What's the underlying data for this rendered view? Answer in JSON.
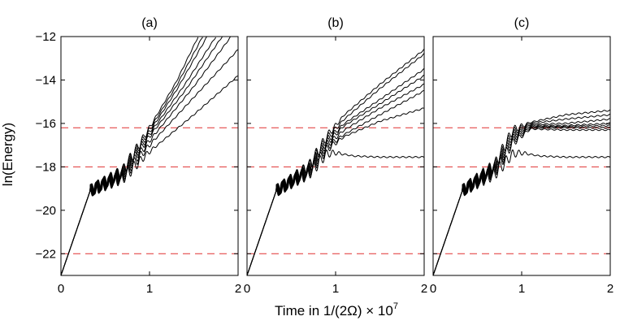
{
  "figure": {
    "ylabel": "ln(Energy)",
    "xlabel": "Time in 1/(2Ω) × 10",
    "xlabel_exponent": "7"
  },
  "chart_data": [
    {
      "type": "line",
      "title": "(a)",
      "xlim": [
        0,
        2
      ],
      "ylim": [
        -23,
        -12
      ],
      "xticks": [
        0,
        1,
        2
      ],
      "yticks": [
        -22,
        -20,
        -18,
        -16,
        -14,
        -12
      ],
      "ref_lines": [
        -16.2,
        -18.0,
        -22.0
      ],
      "ref_color": "#e03030",
      "line_color": "#000000",
      "series": [
        {
          "name": "c1",
          "points": [
            [
              0,
              -23
            ],
            [
              0.33,
              -19.1
            ],
            [
              0.7,
              -18.2
            ],
            [
              1.0,
              -16.2
            ],
            [
              1.3,
              -14.1
            ],
            [
              1.55,
              -12.0
            ]
          ]
        },
        {
          "name": "c2",
          "points": [
            [
              0,
              -23
            ],
            [
              0.33,
              -19.1
            ],
            [
              0.7,
              -18.2
            ],
            [
              1.0,
              -16.3
            ],
            [
              1.3,
              -14.3
            ],
            [
              1.6,
              -12.0
            ]
          ]
        },
        {
          "name": "c3",
          "points": [
            [
              0,
              -23
            ],
            [
              0.33,
              -19.1
            ],
            [
              0.7,
              -18.25
            ],
            [
              1.0,
              -16.4
            ],
            [
              1.3,
              -14.5
            ],
            [
              1.65,
              -12.0
            ]
          ]
        },
        {
          "name": "c4",
          "points": [
            [
              0,
              -23
            ],
            [
              0.33,
              -19.1
            ],
            [
              0.7,
              -18.3
            ],
            [
              1.0,
              -16.5
            ],
            [
              1.4,
              -14.2
            ],
            [
              1.75,
              -12.0
            ]
          ]
        },
        {
          "name": "c5",
          "points": [
            [
              0,
              -23
            ],
            [
              0.33,
              -19.1
            ],
            [
              0.7,
              -18.35
            ],
            [
              1.0,
              -16.6
            ],
            [
              1.4,
              -14.5
            ],
            [
              1.82,
              -12.0
            ]
          ]
        },
        {
          "name": "c6",
          "points": [
            [
              0,
              -23
            ],
            [
              0.33,
              -19.1
            ],
            [
              0.7,
              -18.4
            ],
            [
              1.0,
              -16.8
            ],
            [
              1.5,
              -14.3
            ],
            [
              1.92,
              -12.0
            ]
          ]
        },
        {
          "name": "c7",
          "points": [
            [
              0,
              -23
            ],
            [
              0.33,
              -19.1
            ],
            [
              0.7,
              -18.45
            ],
            [
              1.0,
              -17.0
            ],
            [
              1.5,
              -14.8
            ],
            [
              2.0,
              -12.6
            ]
          ]
        },
        {
          "name": "c8",
          "points": [
            [
              0,
              -23
            ],
            [
              0.33,
              -19.1
            ],
            [
              0.7,
              -18.5
            ],
            [
              1.0,
              -17.3
            ],
            [
              1.5,
              -15.6
            ],
            [
              2.0,
              -13.8
            ]
          ]
        }
      ]
    },
    {
      "type": "line",
      "title": "(b)",
      "xlim": [
        0,
        2
      ],
      "ylim": [
        -23,
        -12
      ],
      "xticks": [
        0,
        1,
        2
      ],
      "yticks": [
        -22,
        -20,
        -18,
        -16,
        -14,
        -12
      ],
      "ref_lines": [
        -16.2,
        -18.0,
        -22.0
      ],
      "ref_color": "#e03030",
      "line_color": "#000000",
      "series": [
        {
          "name": "c1",
          "points": [
            [
              0,
              -23
            ],
            [
              0.33,
              -19.1
            ],
            [
              0.7,
              -18.0
            ],
            [
              0.9,
              -16.6
            ],
            [
              1.1,
              -15.6
            ],
            [
              1.5,
              -14.2
            ],
            [
              2.0,
              -12.6
            ]
          ]
        },
        {
          "name": "c2",
          "points": [
            [
              0,
              -23
            ],
            [
              0.33,
              -19.1
            ],
            [
              0.7,
              -18.0
            ],
            [
              0.9,
              -16.7
            ],
            [
              1.1,
              -15.8
            ],
            [
              1.5,
              -14.4
            ],
            [
              2.0,
              -12.8
            ]
          ]
        },
        {
          "name": "c3",
          "points": [
            [
              0,
              -23
            ],
            [
              0.33,
              -19.1
            ],
            [
              0.7,
              -18.1
            ],
            [
              0.9,
              -16.8
            ],
            [
              1.1,
              -16.0
            ],
            [
              1.5,
              -14.9
            ],
            [
              2.0,
              -13.5
            ]
          ]
        },
        {
          "name": "c4",
          "points": [
            [
              0,
              -23
            ],
            [
              0.33,
              -19.1
            ],
            [
              0.7,
              -18.1
            ],
            [
              0.9,
              -16.9
            ],
            [
              1.1,
              -16.1
            ],
            [
              1.5,
              -15.1
            ],
            [
              2.0,
              -13.8
            ]
          ]
        },
        {
          "name": "c5",
          "points": [
            [
              0,
              -23
            ],
            [
              0.33,
              -19.1
            ],
            [
              0.7,
              -18.15
            ],
            [
              0.9,
              -17.0
            ],
            [
              1.1,
              -16.3
            ],
            [
              1.5,
              -15.3
            ],
            [
              2.0,
              -14.2
            ]
          ]
        },
        {
          "name": "c6",
          "points": [
            [
              0,
              -23
            ],
            [
              0.33,
              -19.1
            ],
            [
              0.7,
              -18.2
            ],
            [
              0.9,
              -17.1
            ],
            [
              1.1,
              -16.5
            ],
            [
              1.5,
              -15.6
            ],
            [
              2.0,
              -14.5
            ]
          ]
        },
        {
          "name": "c7",
          "points": [
            [
              0,
              -23
            ],
            [
              0.33,
              -19.1
            ],
            [
              0.7,
              -18.25
            ],
            [
              0.9,
              -17.2
            ],
            [
              1.1,
              -16.6
            ],
            [
              1.5,
              -15.9
            ],
            [
              2.0,
              -15.3
            ]
          ]
        },
        {
          "name": "c8",
          "points": [
            [
              0,
              -23
            ],
            [
              0.33,
              -19.1
            ],
            [
              0.7,
              -18.3
            ],
            [
              0.9,
              -17.4
            ],
            [
              1.0,
              -17.35
            ],
            [
              1.2,
              -17.5
            ],
            [
              1.5,
              -17.55
            ],
            [
              2.0,
              -17.55
            ]
          ]
        }
      ]
    },
    {
      "type": "line",
      "title": "(c)",
      "xlim": [
        0,
        2
      ],
      "ylim": [
        -23,
        -12
      ],
      "xticks": [
        0,
        1,
        2
      ],
      "yticks": [
        -22,
        -20,
        -18,
        -16,
        -14,
        -12
      ],
      "ref_lines": [
        -16.2,
        -18.0,
        -22.0
      ],
      "ref_color": "#e03030",
      "line_color": "#000000",
      "series": [
        {
          "name": "c1",
          "points": [
            [
              0,
              -23
            ],
            [
              0.33,
              -19.1
            ],
            [
              0.7,
              -17.9
            ],
            [
              0.9,
              -16.3
            ],
            [
              1.1,
              -15.95
            ],
            [
              1.5,
              -15.6
            ],
            [
              2.0,
              -15.4
            ]
          ]
        },
        {
          "name": "c2",
          "points": [
            [
              0,
              -23
            ],
            [
              0.33,
              -19.1
            ],
            [
              0.7,
              -17.95
            ],
            [
              0.9,
              -16.4
            ],
            [
              1.1,
              -16.0
            ],
            [
              1.5,
              -15.8
            ],
            [
              2.0,
              -15.6
            ]
          ]
        },
        {
          "name": "c3",
          "points": [
            [
              0,
              -23
            ],
            [
              0.33,
              -19.1
            ],
            [
              0.7,
              -18.0
            ],
            [
              0.9,
              -16.5
            ],
            [
              1.1,
              -16.05
            ],
            [
              1.5,
              -16.0
            ],
            [
              2.0,
              -15.8
            ]
          ]
        },
        {
          "name": "c4",
          "points": [
            [
              0,
              -23
            ],
            [
              0.33,
              -19.1
            ],
            [
              0.7,
              -18.05
            ],
            [
              0.9,
              -16.6
            ],
            [
              1.1,
              -16.1
            ],
            [
              1.5,
              -16.1
            ],
            [
              2.0,
              -16.0
            ]
          ]
        },
        {
          "name": "c5",
          "points": [
            [
              0,
              -23
            ],
            [
              0.33,
              -19.1
            ],
            [
              0.7,
              -18.1
            ],
            [
              0.9,
              -16.7
            ],
            [
              1.1,
              -16.15
            ],
            [
              1.5,
              -16.15
            ],
            [
              2.0,
              -16.1
            ]
          ]
        },
        {
          "name": "c6",
          "points": [
            [
              0,
              -23
            ],
            [
              0.33,
              -19.1
            ],
            [
              0.7,
              -18.15
            ],
            [
              0.9,
              -16.8
            ],
            [
              1.1,
              -16.2
            ],
            [
              1.5,
              -16.2
            ],
            [
              2.0,
              -16.2
            ]
          ]
        },
        {
          "name": "c7",
          "points": [
            [
              0,
              -23
            ],
            [
              0.33,
              -19.1
            ],
            [
              0.7,
              -18.2
            ],
            [
              0.9,
              -16.9
            ],
            [
              1.1,
              -16.25
            ],
            [
              1.5,
              -16.3
            ],
            [
              2.0,
              -16.3
            ]
          ]
        },
        {
          "name": "c8",
          "points": [
            [
              0,
              -23
            ],
            [
              0.33,
              -19.1
            ],
            [
              0.7,
              -18.3
            ],
            [
              0.9,
              -17.4
            ],
            [
              1.0,
              -17.35
            ],
            [
              1.2,
              -17.5
            ],
            [
              1.5,
              -17.55
            ],
            [
              2.0,
              -17.55
            ]
          ]
        }
      ]
    }
  ]
}
